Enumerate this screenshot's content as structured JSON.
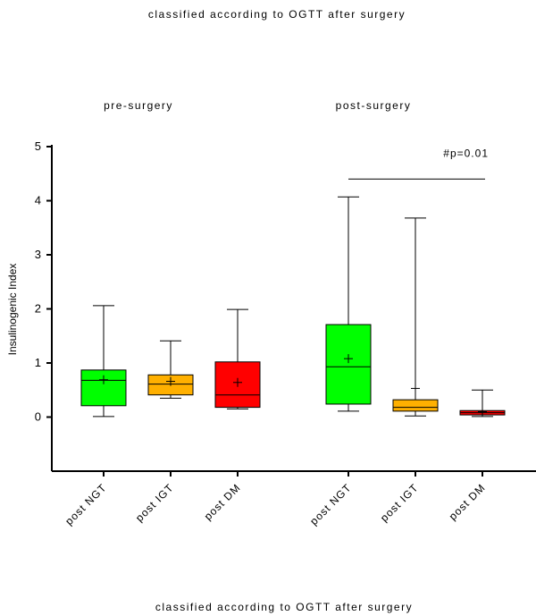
{
  "header": {
    "title": "classified according to OGTT after surgery"
  },
  "footer": {
    "caption": "classified according to OGTT after surgery"
  },
  "chart_data": {
    "type": "box",
    "title": "classified according to OGTT after surgery",
    "ylabel": "Insulinogenic Index",
    "xlabel": "classified according to OGTT after surgery",
    "ylim": [
      -1,
      5
    ],
    "yticks": [
      0,
      1,
      2,
      3,
      4,
      5
    ],
    "groups": [
      {
        "label": "pre-surgery"
      },
      {
        "label": "post-surgery"
      }
    ],
    "categories": [
      "post NGT",
      "post IGT",
      "post DM",
      "post NGT",
      "post IGT",
      "post DM"
    ],
    "boxes": [
      {
        "group": "pre-surgery",
        "category": "post NGT",
        "color": "#00ff00",
        "min": 0.01,
        "q1": 0.21,
        "median": 0.68,
        "q3": 0.87,
        "max": 2.06,
        "mean": 0.69
      },
      {
        "group": "pre-surgery",
        "category": "post IGT",
        "color": "#ffb000",
        "min": 0.35,
        "q1": 0.41,
        "median": 0.61,
        "q3": 0.78,
        "max": 1.41,
        "mean": 0.66
      },
      {
        "group": "pre-surgery",
        "category": "post DM",
        "color": "#ff0000",
        "min": 0.15,
        "q1": 0.18,
        "median": 0.41,
        "q3": 1.02,
        "max": 1.99,
        "mean": 0.64
      },
      {
        "group": "post-surgery",
        "category": "post NGT",
        "color": "#00ff00",
        "min": 0.11,
        "q1": 0.24,
        "median": 0.93,
        "q3": 1.71,
        "max": 4.07,
        "mean": 1.08
      },
      {
        "group": "post-surgery",
        "category": "post IGT",
        "color": "#ffb000",
        "min": 0.02,
        "q1": 0.11,
        "median": 0.18,
        "q3": 0.32,
        "max": 3.68,
        "mean": 0.53
      },
      {
        "group": "post-surgery",
        "category": "post DM",
        "color": "#ff0000",
        "min": 0.01,
        "q1": 0.04,
        "median": 0.08,
        "q3": 0.12,
        "max": 0.5,
        "mean": 0.1
      }
    ],
    "annotations": [
      {
        "text": "#p=0.01",
        "from_category": 3,
        "to_category": 5,
        "y": 4.4
      }
    ],
    "grid": false,
    "legend": "none"
  }
}
